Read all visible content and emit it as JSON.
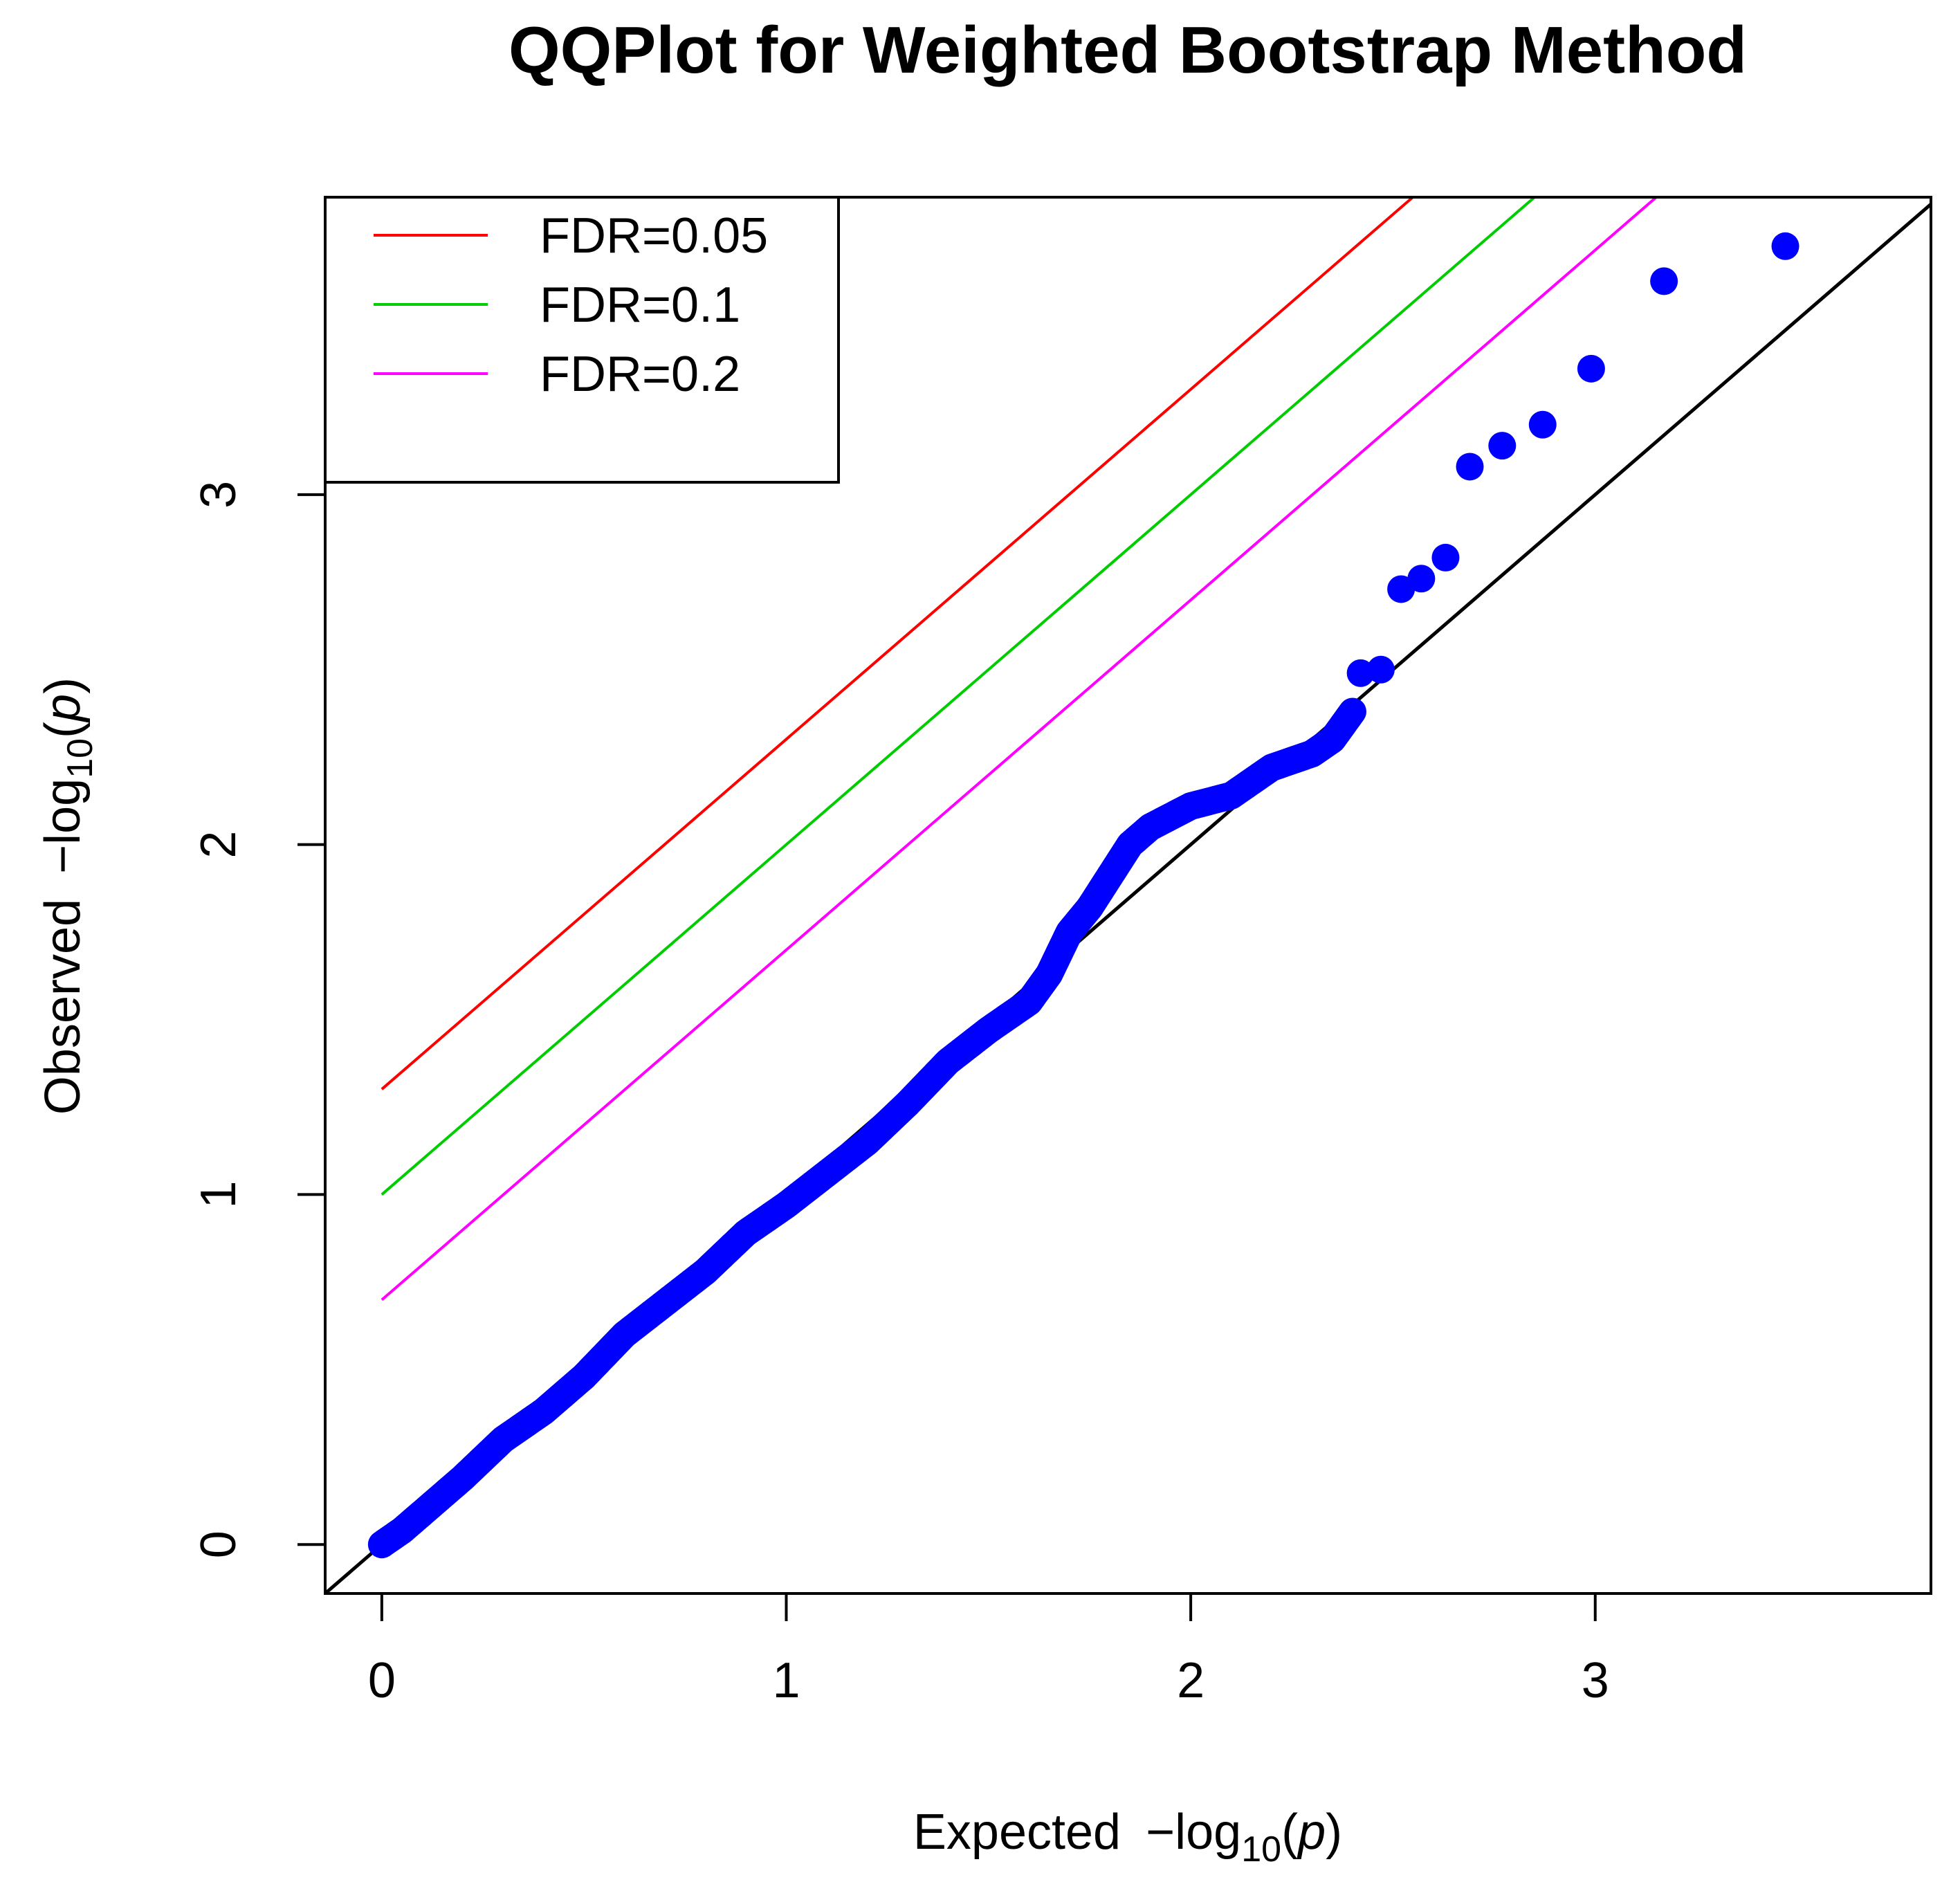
{
  "chart_data": {
    "type": "scatter",
    "title": "QQPlot for Weighted Bootstrap Method",
    "xlabel": {
      "prefix": "Expected",
      "minus": "−",
      "log": "log",
      "sub": "10",
      "open": "(",
      "p": "p",
      "close": ")"
    },
    "ylabel": {
      "prefix": "Observed",
      "minus": "−",
      "log": "log",
      "sub": "10",
      "open": "(",
      "p": "p",
      "close": ")"
    },
    "xlim": [
      -0.14,
      3.83
    ],
    "ylim": [
      -0.14,
      3.85
    ],
    "xticks": [
      0,
      1,
      2,
      3
    ],
    "xtick_labels": [
      "0",
      "1",
      "2",
      "3"
    ],
    "yticks": [
      0,
      1,
      2,
      3
    ],
    "ytick_labels": [
      "0",
      "1",
      "2",
      "3"
    ],
    "point_color": "#0000ff",
    "diagonal": {
      "slope": 1,
      "intercept": 0,
      "color": "#000000"
    },
    "fdr_lines": [
      {
        "label": "FDR=0.05",
        "intercept": 1.301,
        "color": "#ff0000"
      },
      {
        "label": "FDR=0.1",
        "intercept": 1.0,
        "color": "#00cd00"
      },
      {
        "label": "FDR=0.2",
        "intercept": 0.699,
        "color": "#ff00ff"
      }
    ],
    "legend_position": "top-left",
    "curve_points": [
      [
        0.0,
        0.0
      ],
      [
        0.05,
        0.04
      ],
      [
        0.1,
        0.09
      ],
      [
        0.2,
        0.19
      ],
      [
        0.3,
        0.3
      ],
      [
        0.4,
        0.38
      ],
      [
        0.5,
        0.48
      ],
      [
        0.6,
        0.6
      ],
      [
        0.7,
        0.69
      ],
      [
        0.8,
        0.78
      ],
      [
        0.9,
        0.89
      ],
      [
        1.0,
        0.97
      ],
      [
        1.1,
        1.06
      ],
      [
        1.2,
        1.15
      ],
      [
        1.3,
        1.26
      ],
      [
        1.4,
        1.38
      ],
      [
        1.5,
        1.47
      ],
      [
        1.6,
        1.55
      ],
      [
        1.65,
        1.63
      ],
      [
        1.7,
        1.75
      ],
      [
        1.75,
        1.82
      ],
      [
        1.8,
        1.91
      ],
      [
        1.85,
        2.0
      ],
      [
        1.9,
        2.05
      ],
      [
        1.95,
        2.08
      ],
      [
        2.0,
        2.11
      ],
      [
        2.1,
        2.14
      ],
      [
        2.2,
        2.22
      ],
      [
        2.3,
        2.26
      ],
      [
        2.35,
        2.3
      ],
      [
        2.4,
        2.38
      ]
    ],
    "tail_points": [
      [
        2.42,
        2.49
      ],
      [
        2.47,
        2.5
      ],
      [
        2.52,
        2.73
      ],
      [
        2.57,
        2.76
      ],
      [
        2.63,
        2.82
      ],
      [
        2.69,
        3.08
      ],
      [
        2.77,
        3.14
      ],
      [
        2.87,
        3.2
      ],
      [
        2.99,
        3.36
      ],
      [
        3.17,
        3.61
      ],
      [
        3.47,
        3.71
      ]
    ]
  }
}
